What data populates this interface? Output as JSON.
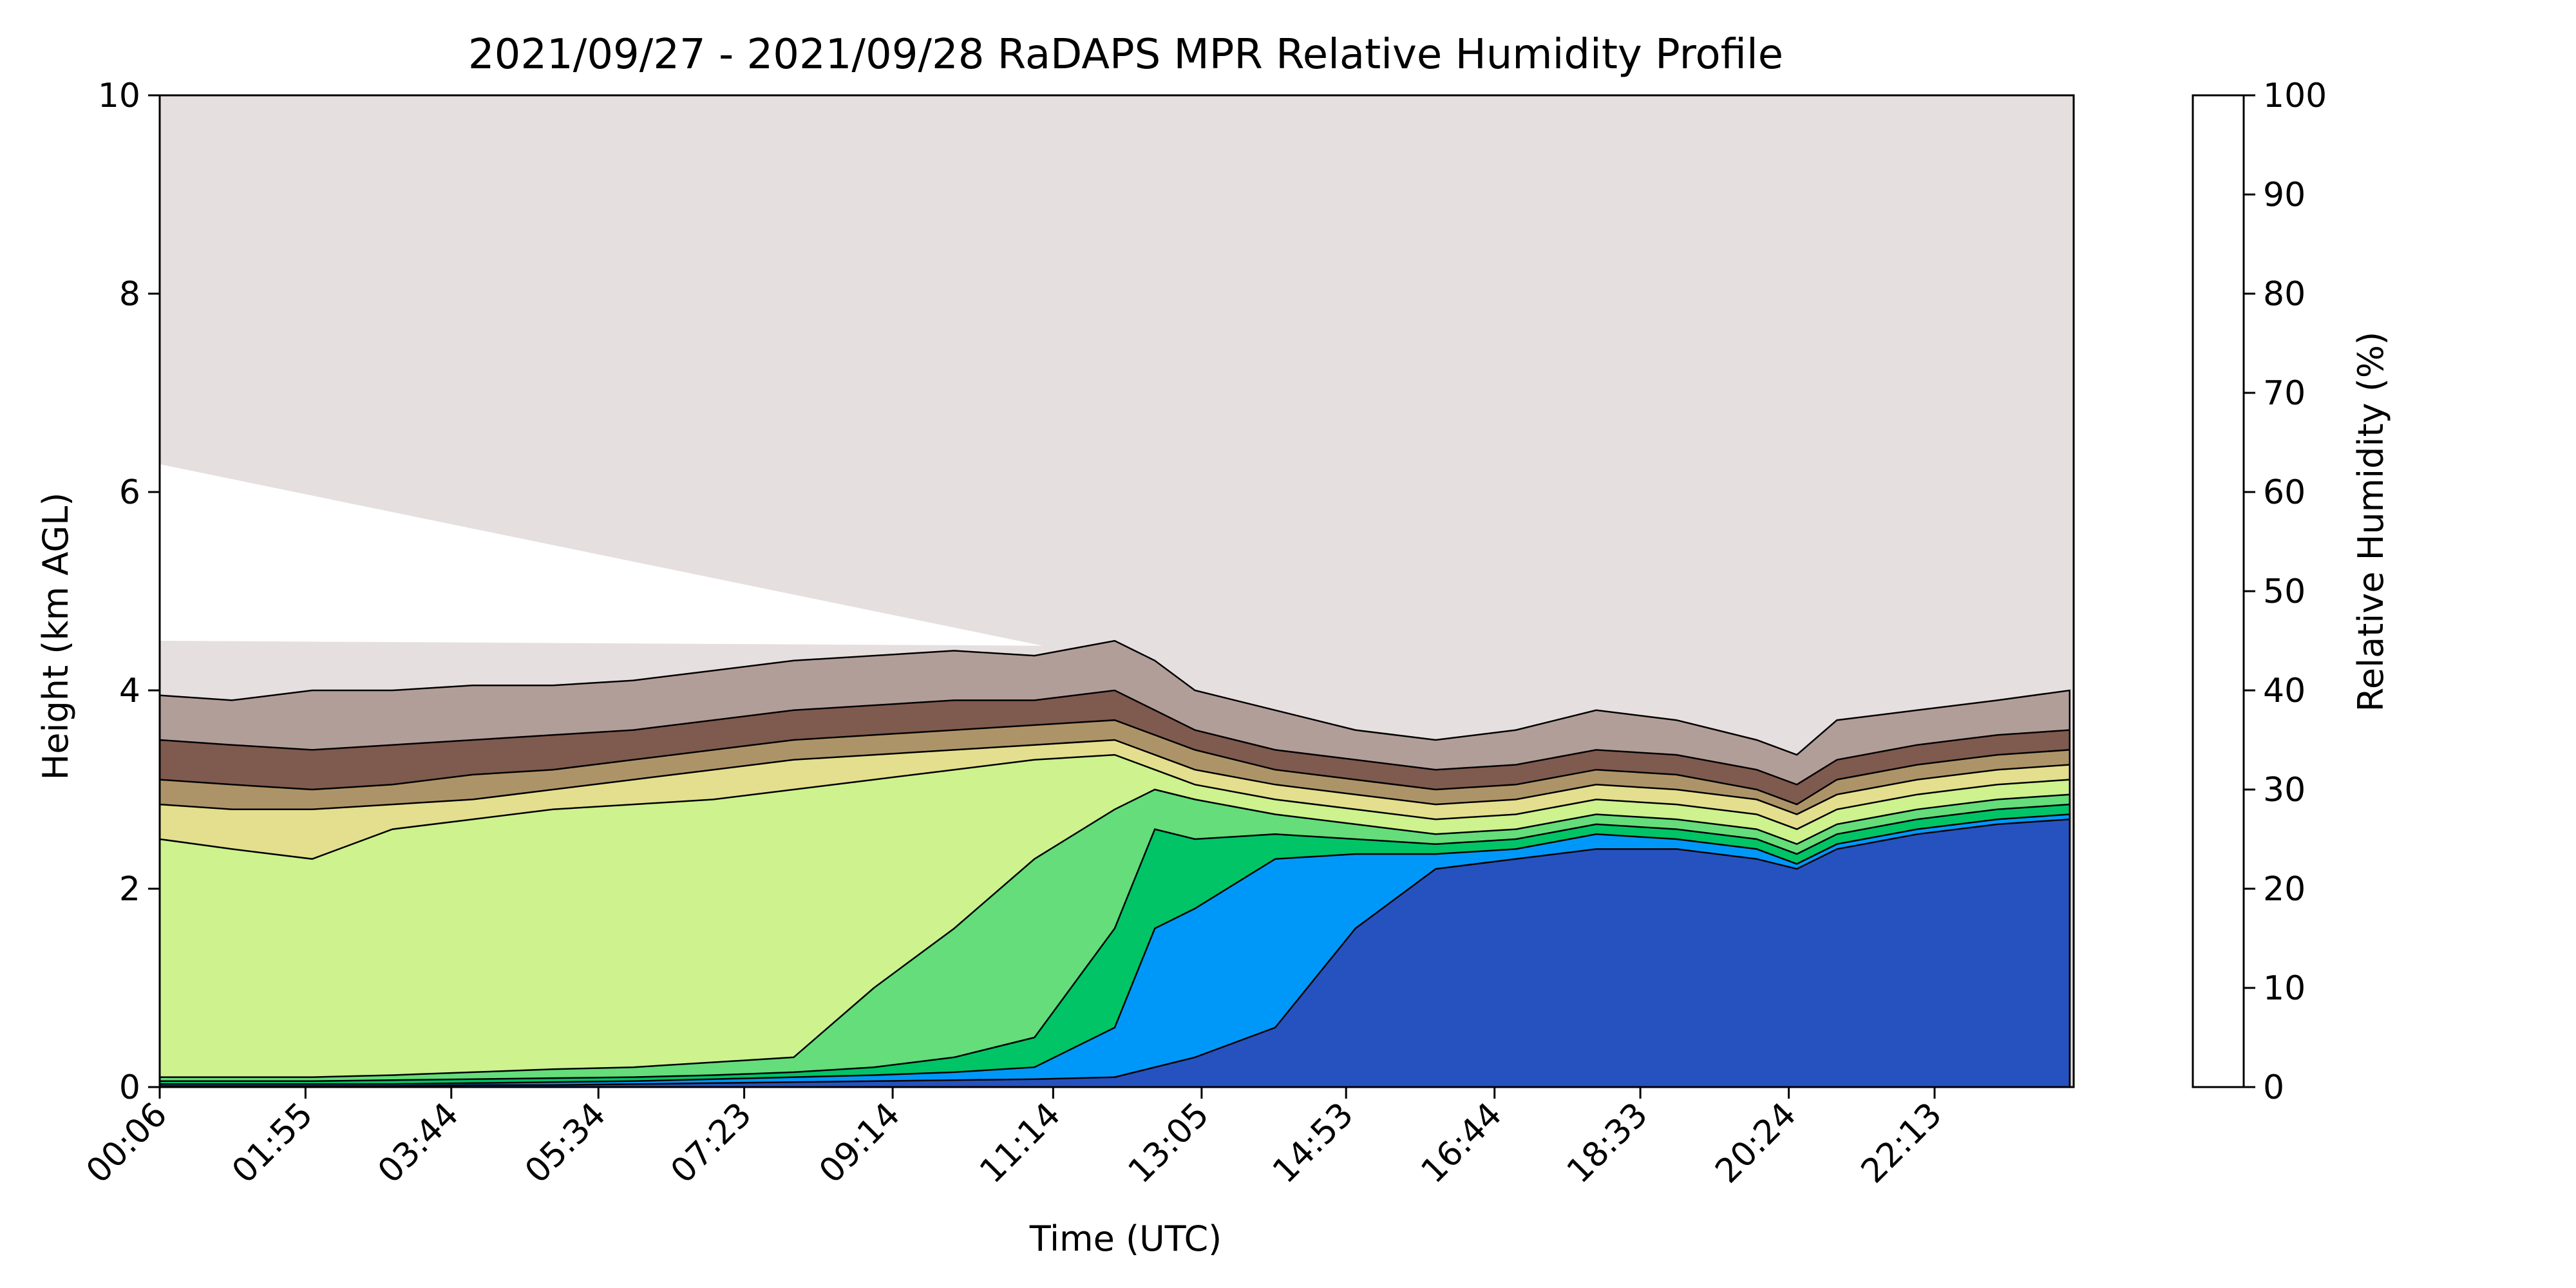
{
  "chart_data": {
    "type": "heatmap",
    "subtype": "filled-contour",
    "title": "2021/09/27 - 2021/09/28 RaDAPS MPR Relative Humidity Profile",
    "xlabel": "Time (UTC)",
    "ylabel": "Height (km AGL)",
    "x_ticks": [
      "00:06",
      "01:55",
      "03:44",
      "05:34",
      "07:23",
      "09:14",
      "11:14",
      "13:05",
      "14:53",
      "16:44",
      "18:33",
      "20:24",
      "22:13"
    ],
    "y_ticks": [
      "0",
      "2",
      "4",
      "6",
      "8",
      "10"
    ],
    "ylim": [
      0,
      10
    ],
    "colorbar": {
      "label": "Relative Humidity (%)",
      "ticks": [
        "0",
        "10",
        "20",
        "30",
        "40",
        "50",
        "60",
        "70",
        "80",
        "90",
        "100"
      ],
      "levels": [
        0,
        10,
        20,
        30,
        40,
        50,
        60,
        70,
        80,
        90,
        100
      ],
      "colors": [
        "#e6dfdf",
        "#b29e99",
        "#7f5a4f",
        "#ad9468",
        "#e4df8e",
        "#cdf28e",
        "#64dd7a",
        "#00c466",
        "#0098f8",
        "#2652bf"
      ]
    },
    "x_samples_hours": [
      0.1,
      1.0,
      2.0,
      3.0,
      4.0,
      5.0,
      6.0,
      7.0,
      8.0,
      9.0,
      10.0,
      11.0,
      12.0,
      12.5,
      13.0,
      14.0,
      15.0,
      16.0,
      17.0,
      18.0,
      19.0,
      20.0,
      20.5,
      21.0,
      22.0,
      23.0,
      23.9
    ],
    "band_tops_km": {
      "10": [
        3.95,
        3.9,
        4.0,
        4.0,
        4.05,
        4.05,
        4.1,
        4.2,
        4.3,
        4.35,
        4.4,
        4.35,
        4.5,
        4.3,
        4.0,
        3.8,
        3.6,
        3.5,
        3.6,
        3.8,
        3.7,
        3.5,
        3.35,
        3.7,
        3.8,
        3.9,
        4.0
      ],
      "20": [
        3.5,
        3.45,
        3.4,
        3.45,
        3.5,
        3.55,
        3.6,
        3.7,
        3.8,
        3.85,
        3.9,
        3.9,
        4.0,
        3.8,
        3.6,
        3.4,
        3.3,
        3.2,
        3.25,
        3.4,
        3.35,
        3.2,
        3.05,
        3.3,
        3.45,
        3.55,
        3.6
      ],
      "30": [
        3.1,
        3.05,
        3.0,
        3.05,
        3.15,
        3.2,
        3.3,
        3.4,
        3.5,
        3.55,
        3.6,
        3.65,
        3.7,
        3.55,
        3.4,
        3.2,
        3.1,
        3.0,
        3.05,
        3.2,
        3.15,
        3.0,
        2.85,
        3.1,
        3.25,
        3.35,
        3.4
      ],
      "40": [
        2.85,
        2.8,
        2.8,
        2.85,
        2.9,
        3.0,
        3.1,
        3.2,
        3.3,
        3.35,
        3.4,
        3.45,
        3.5,
        3.35,
        3.2,
        3.05,
        2.95,
        2.85,
        2.9,
        3.05,
        3.0,
        2.9,
        2.75,
        2.95,
        3.1,
        3.2,
        3.25
      ],
      "50": [
        2.5,
        2.4,
        2.3,
        2.6,
        2.7,
        2.8,
        2.85,
        2.9,
        3.0,
        3.1,
        3.2,
        3.3,
        3.35,
        3.2,
        3.05,
        2.9,
        2.8,
        2.7,
        2.75,
        2.9,
        2.85,
        2.75,
        2.6,
        2.8,
        2.95,
        3.05,
        3.1
      ],
      "60": [
        0.1,
        0.1,
        0.1,
        0.12,
        0.15,
        0.18,
        0.2,
        0.25,
        0.3,
        1.0,
        1.6,
        2.3,
        2.8,
        3.0,
        2.9,
        2.75,
        2.65,
        2.55,
        2.6,
        2.75,
        2.7,
        2.6,
        2.45,
        2.65,
        2.8,
        2.9,
        2.95
      ],
      "70": [
        0.06,
        0.06,
        0.06,
        0.07,
        0.08,
        0.09,
        0.1,
        0.12,
        0.15,
        0.2,
        0.3,
        0.5,
        1.6,
        2.6,
        2.5,
        2.55,
        2.5,
        2.45,
        2.5,
        2.65,
        2.6,
        2.5,
        2.35,
        2.55,
        2.7,
        2.8,
        2.85
      ],
      "80": [
        0.03,
        0.03,
        0.03,
        0.03,
        0.04,
        0.05,
        0.06,
        0.08,
        0.1,
        0.12,
        0.15,
        0.2,
        0.6,
        1.6,
        1.8,
        2.3,
        2.35,
        2.35,
        2.4,
        2.55,
        2.5,
        2.4,
        2.25,
        2.45,
        2.6,
        2.7,
        2.75
      ],
      "90": [
        0.01,
        0.01,
        0.01,
        0.01,
        0.02,
        0.02,
        0.03,
        0.04,
        0.05,
        0.06,
        0.07,
        0.08,
        0.1,
        0.2,
        0.3,
        0.6,
        1.6,
        2.2,
        2.3,
        2.4,
        2.4,
        2.3,
        2.2,
        2.4,
        2.55,
        2.65,
        2.7
      ]
    },
    "grid": false,
    "legend": "colorbar-right"
  }
}
